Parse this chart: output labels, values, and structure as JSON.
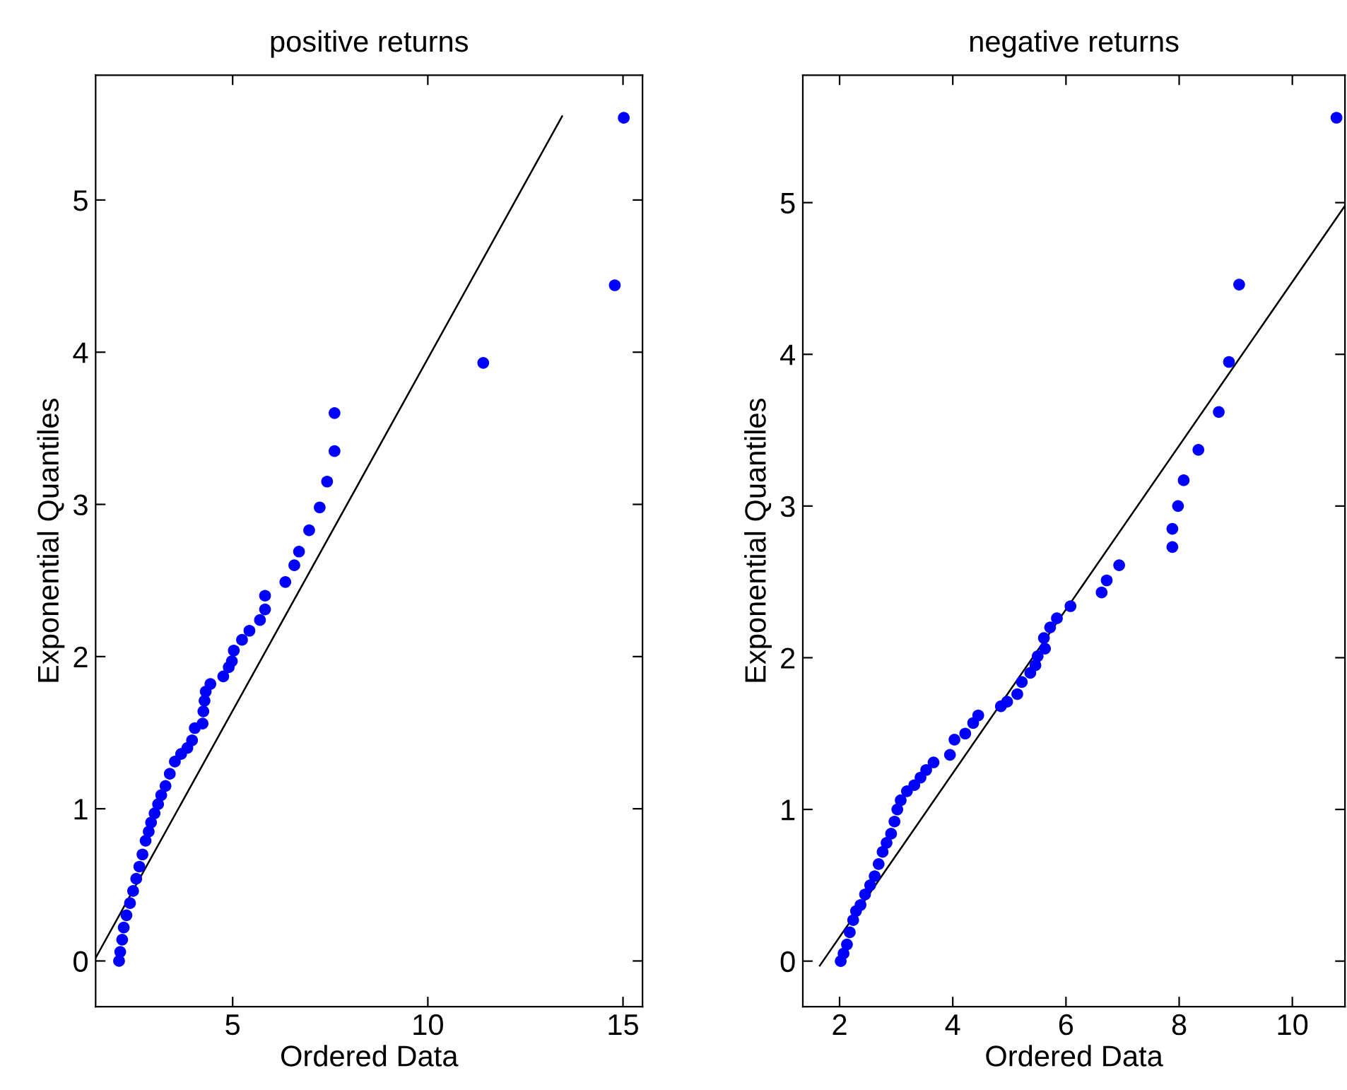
{
  "chart_data": [
    {
      "type": "scatter",
      "title": "positive returns",
      "xlabel": "Ordered Data",
      "ylabel": "Exponential Quantiles",
      "xlim": [
        1.49,
        15.5
      ],
      "ylim": [
        -0.3,
        5.82
      ],
      "xticks": [
        5,
        10,
        15
      ],
      "yticks": [
        0,
        1,
        2,
        3,
        4,
        5
      ],
      "grid": false,
      "legend": false,
      "marker": "circle",
      "series": [
        {
          "color": "#0000ff",
          "x": [
            2.09,
            2.12,
            2.17,
            2.21,
            2.28,
            2.37,
            2.45,
            2.53,
            2.61,
            2.69,
            2.77,
            2.85,
            2.91,
            3.0,
            3.09,
            3.17,
            3.28,
            3.39,
            3.52,
            3.68,
            3.84,
            3.96,
            4.03,
            4.23,
            4.25,
            4.28,
            4.31,
            4.43,
            4.76,
            4.9,
            4.98,
            5.03,
            5.24,
            5.43,
            5.7,
            5.83,
            5.83,
            6.35,
            6.58,
            6.7,
            6.96,
            7.23,
            7.42,
            7.61,
            7.61,
            11.42,
            14.79,
            15.02
          ],
          "values": [
            0,
            0.06,
            0.14,
            0.22,
            0.3,
            0.38,
            0.46,
            0.54,
            0.62,
            0.7,
            0.79,
            0.85,
            0.91,
            0.97,
            1.03,
            1.09,
            1.15,
            1.23,
            1.31,
            1.36,
            1.4,
            1.45,
            1.53,
            1.56,
            1.64,
            1.71,
            1.77,
            1.82,
            1.87,
            1.93,
            1.97,
            2.04,
            2.11,
            2.17,
            2.24,
            2.31,
            2.4,
            2.49,
            2.6,
            2.69,
            2.83,
            2.98,
            3.15,
            3.35,
            3.6,
            3.93,
            4.44,
            5.54
          ]
        },
        {
          "type": "line",
          "color": "#000000",
          "marker": "none",
          "line_style": "solid",
          "x": [
            1.49,
            13.44
          ],
          "values": [
            0.02,
            5.55
          ]
        }
      ]
    },
    {
      "type": "scatter",
      "title": "negative returns",
      "xlabel": "Ordered Data",
      "ylabel": "Exponential Quantiles",
      "xlim": [
        1.35,
        10.93
      ],
      "ylim": [
        -0.3,
        5.84
      ],
      "xticks": [
        2,
        4,
        6,
        8,
        10
      ],
      "yticks": [
        0,
        1,
        2,
        3,
        4,
        5
      ],
      "grid": false,
      "legend": false,
      "marker": "circle",
      "series": [
        {
          "color": "#0000ff",
          "x": [
            2.02,
            2.07,
            2.13,
            2.18,
            2.24,
            2.29,
            2.37,
            2.45,
            2.54,
            2.62,
            2.69,
            2.76,
            2.83,
            2.91,
            2.97,
            3.02,
            3.08,
            3.19,
            3.32,
            3.43,
            3.53,
            3.66,
            3.95,
            4.03,
            4.22,
            4.36,
            4.45,
            4.85,
            4.96,
            5.14,
            5.22,
            5.37,
            5.46,
            5.5,
            5.63,
            5.61,
            5.72,
            5.84,
            6.08,
            6.63,
            6.72,
            6.94,
            7.88,
            7.88,
            7.98,
            8.08,
            8.34,
            8.7,
            8.88,
            9.06,
            10.78
          ],
          "values": [
            0,
            0.05,
            0.11,
            0.19,
            0.27,
            0.33,
            0.37,
            0.44,
            0.5,
            0.56,
            0.64,
            0.72,
            0.78,
            0.84,
            0.92,
            1.0,
            1.06,
            1.12,
            1.16,
            1.21,
            1.26,
            1.31,
            1.36,
            1.46,
            1.5,
            1.57,
            1.62,
            1.68,
            1.71,
            1.76,
            1.84,
            1.9,
            1.95,
            2.01,
            2.06,
            2.13,
            2.2,
            2.26,
            2.34,
            2.43,
            2.51,
            2.61,
            2.73,
            2.85,
            3.0,
            3.17,
            3.37,
            3.62,
            3.95,
            4.46,
            5.56
          ]
        },
        {
          "type": "line",
          "color": "#000000",
          "marker": "none",
          "line_style": "solid",
          "x": [
            1.65,
            10.93
          ],
          "values": [
            -0.03,
            4.98
          ]
        }
      ]
    }
  ]
}
